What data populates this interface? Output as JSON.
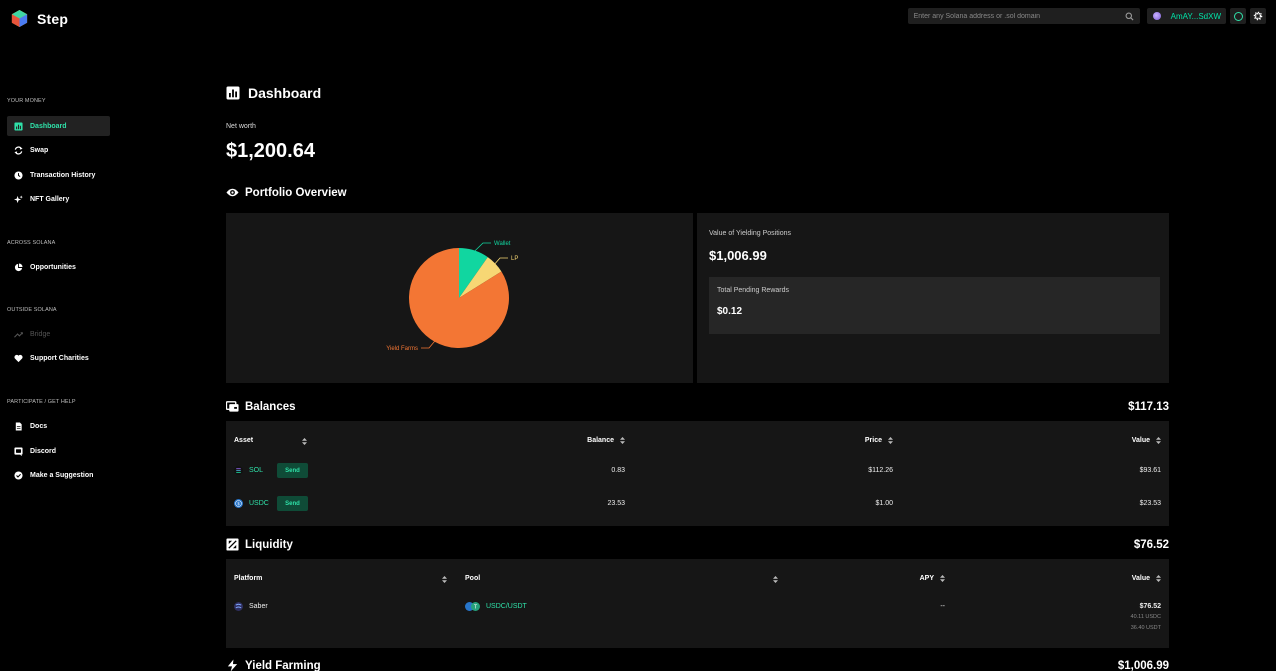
{
  "app": {
    "name": "Step"
  },
  "topbar": {
    "search_placeholder": "Enter any Solana address or .sol domain",
    "wallet_address": "AmAY...SdXW"
  },
  "sidebar": {
    "sections": [
      {
        "label": "YOUR MONEY",
        "items": [
          {
            "label": "Dashboard",
            "icon": "chart-icon",
            "active": true
          },
          {
            "label": "Swap",
            "icon": "swap-icon"
          },
          {
            "label": "Transaction History",
            "icon": "clock-icon"
          },
          {
            "label": "NFT Gallery",
            "icon": "sparkle-icon"
          }
        ]
      },
      {
        "label": "ACROSS SOLANA",
        "items": [
          {
            "label": "Opportunities",
            "icon": "pie-icon"
          }
        ]
      },
      {
        "label": "OUTSIDE SOLANA",
        "items": [
          {
            "label": "Bridge",
            "icon": "trend-icon",
            "disabled": true
          },
          {
            "label": "Support Charities",
            "icon": "heart-icon"
          }
        ]
      },
      {
        "label": "PARTICIPATE / GET HELP",
        "items": [
          {
            "label": "Docs",
            "icon": "doc-icon"
          },
          {
            "label": "Discord",
            "icon": "discord-icon"
          },
          {
            "label": "Make a Suggestion",
            "icon": "check-icon"
          }
        ]
      }
    ]
  },
  "dashboard": {
    "title": "Dashboard",
    "net_worth_label": "Net worth",
    "net_worth_value": "$1,200.64"
  },
  "portfolio": {
    "title": "Portfolio Overview",
    "yield_label": "Value of Yielding Positions",
    "yield_value": "$1,006.99",
    "pending_label": "Total Pending Rewards",
    "pending_value": "$0.12"
  },
  "chart_data": {
    "type": "pie",
    "slices": [
      {
        "label": "Wallet",
        "value": 117.13,
        "color": "#11d6a0"
      },
      {
        "label": "LP",
        "value": 76.52,
        "color": "#f7d774"
      },
      {
        "label": "Yield Farms",
        "value": 1006.99,
        "color": "#f37634"
      }
    ]
  },
  "balances": {
    "title": "Balances",
    "total": "$117.13",
    "headers": [
      "Asset",
      "Balance",
      "Price",
      "Value"
    ],
    "send_label": "Send",
    "rows": [
      {
        "asset": "SOL",
        "balance": "0.83",
        "price": "$112.26",
        "value": "$93.61"
      },
      {
        "asset": "USDC",
        "balance": "23.53",
        "price": "$1.00",
        "value": "$23.53"
      }
    ]
  },
  "liquidity": {
    "title": "Liquidity",
    "total": "$76.52",
    "headers": [
      "Platform",
      "Pool",
      "APY",
      "Value"
    ],
    "rows": [
      {
        "platform": "Saber",
        "pool": "USDC/USDT",
        "apy": "--",
        "value": "$76.52",
        "sub1": "40.11 USDC",
        "sub2": "36.40 USDT"
      }
    ]
  },
  "yield_farming": {
    "title": "Yield Farming",
    "total": "$1,006.99"
  }
}
